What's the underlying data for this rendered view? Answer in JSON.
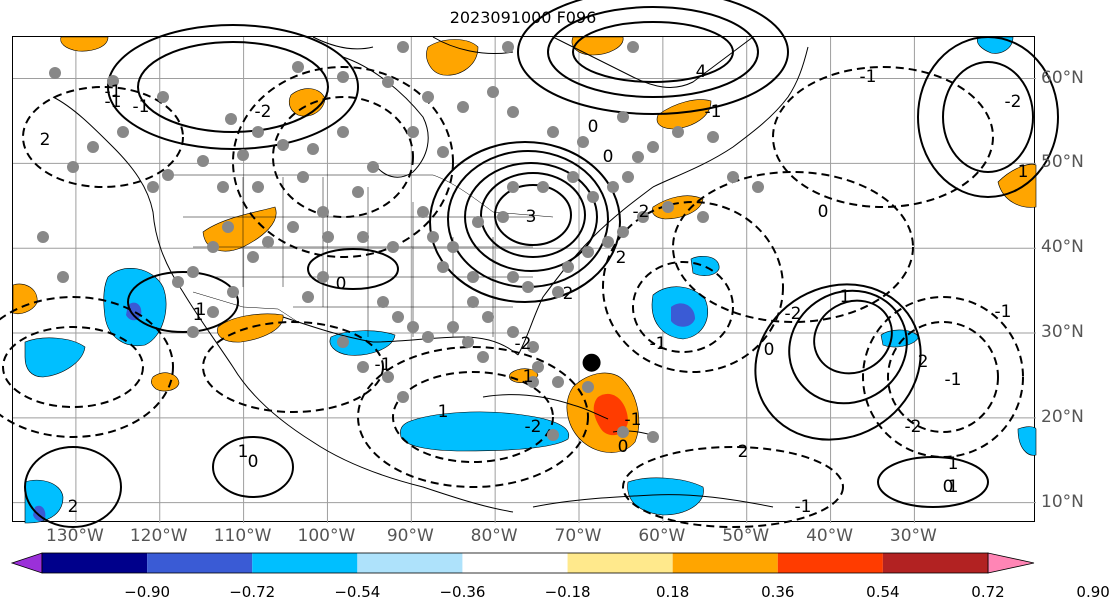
{
  "title": "2023091000 F096",
  "map": {
    "type": "weather-forecast-anomaly-map",
    "region": "North Atlantic / North America",
    "lon_labels": [
      {
        "name": "lon-130w",
        "text": "130°W",
        "lon": -130
      },
      {
        "name": "lon-120w",
        "text": "120°W",
        "lon": -120
      },
      {
        "name": "lon-110w",
        "text": "110°W",
        "lon": -110
      },
      {
        "name": "lon-100w",
        "text": "100°W",
        "lon": -100
      },
      {
        "name": "lon-90w",
        "text": "90°W",
        "lon": -90
      },
      {
        "name": "lon-80w",
        "text": "80°W",
        "lon": -80
      },
      {
        "name": "lon-70w",
        "text": "70°W",
        "lon": -70
      },
      {
        "name": "lon-60w",
        "text": "60°W",
        "lon": -60
      },
      {
        "name": "lon-50w",
        "text": "50°W",
        "lon": -50
      },
      {
        "name": "lon-40w",
        "text": "40°W",
        "lon": -40
      },
      {
        "name": "lon-30w",
        "text": "30°W",
        "lon": -30
      }
    ],
    "lat_labels": [
      {
        "name": "lat-60n",
        "text": "60°N",
        "lat": 60
      },
      {
        "name": "lat-50n",
        "text": "50°N",
        "lat": 50
      },
      {
        "name": "lat-40n",
        "text": "40°N",
        "lat": 40
      },
      {
        "name": "lat-30n",
        "text": "30°N",
        "lat": 30
      },
      {
        "name": "lat-20n",
        "text": "20°N",
        "lat": 20
      },
      {
        "name": "lat-10n",
        "text": "10°N",
        "lat": 10
      }
    ],
    "contour_labels": [
      "2",
      "-1",
      "1",
      "-1",
      "0",
      "2",
      "-2",
      "2",
      "1",
      "-2",
      "-1",
      "0",
      "3",
      "4",
      "-2",
      "2",
      "1",
      "0",
      "-2",
      "1",
      "-1",
      "2",
      "0",
      "-1",
      "-2",
      "-1",
      "1",
      "0",
      "-1",
      "-2",
      "1",
      "1",
      "0",
      "-1",
      "2",
      "1",
      "-1",
      "0",
      "-1",
      "-2",
      "-1",
      "0",
      "1"
    ],
    "storm_marker": {
      "lon": -68.5,
      "lat": 26.5
    }
  },
  "colorbar": {
    "colors": [
      "#9b30d9",
      "#00008b",
      "#3a5bd5",
      "#00bfff",
      "#aee2fb",
      "#ffffff",
      "#ffe98c",
      "#ffa500",
      "#ff3c00",
      "#b22222",
      "#ff85b5"
    ],
    "extend_low_color": "#9b30d9",
    "extend_high_color": "#ff85b5",
    "tick_labels": [
      "−0.90",
      "−0.72",
      "−0.54",
      "−0.36",
      "−0.18",
      "0.18",
      "0.36",
      "0.54",
      "0.72",
      "0.90"
    ]
  }
}
